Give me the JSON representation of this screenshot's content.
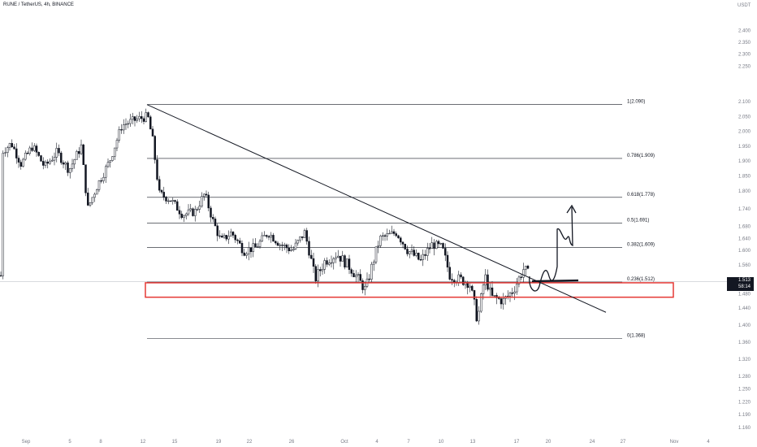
{
  "header": {
    "symbol_line": "RUNE / TetherUS, 4h, BINANCE",
    "currency": "USDT"
  },
  "price_tag": {
    "value": "1.513",
    "countdown": "58:14"
  },
  "chart_data": {
    "type": "candlestick",
    "title": "RUNE / TetherUS, 4h, BINANCE",
    "ylabel": "USDT",
    "x_tick_labels": [
      "Sep",
      "5",
      "8",
      "12",
      "15",
      "19",
      "22",
      "26",
      "Oct",
      "4",
      "7",
      "10",
      "13",
      "17",
      "20",
      "24",
      "27",
      "Nov",
      "4"
    ],
    "y_tick_labels": [
      "2.400",
      "2.350",
      "2.300",
      "2.250",
      "2.100",
      "2.050",
      "2.000",
      "1.950",
      "1.900",
      "1.850",
      "1.800",
      "1.740",
      "1.680",
      "1.640",
      "1.600",
      "1.560",
      "1.480",
      "1.440",
      "1.400",
      "1.360",
      "1.320",
      "1.280",
      "1.250",
      "1.220",
      "1.190",
      "1.160"
    ],
    "ylim": [
      1.15,
      2.45
    ],
    "current_price": 1.513,
    "fib_levels": [
      {
        "label": "1(2.090)",
        "value": 2.09
      },
      {
        "label": "0.786(1.909)",
        "value": 1.909
      },
      {
        "label": "0.618(1.778)",
        "value": 1.778
      },
      {
        "label": "0.5(1.691)",
        "value": 1.691
      },
      {
        "label": "0.382(1.609)",
        "value": 1.609
      },
      {
        "label": "0.236(1.512)",
        "value": 1.512
      },
      {
        "label": "0(1.368)",
        "value": 1.368
      }
    ],
    "trendline": {
      "start": {
        "date": "Sep 12",
        "price": 2.09
      },
      "end": {
        "date": "Oct 25",
        "price": 1.43
      }
    },
    "support_zone": {
      "price_top": 1.51,
      "price_bottom": 1.47,
      "color": "#e53935"
    },
    "projection_note": "hand-drawn arrow projecting a move up toward 1.74",
    "colors": {
      "up": "#ffffff",
      "down": "#131722",
      "fib": "#131722",
      "zone": "#e53935"
    },
    "grid": false,
    "legend": "none"
  }
}
